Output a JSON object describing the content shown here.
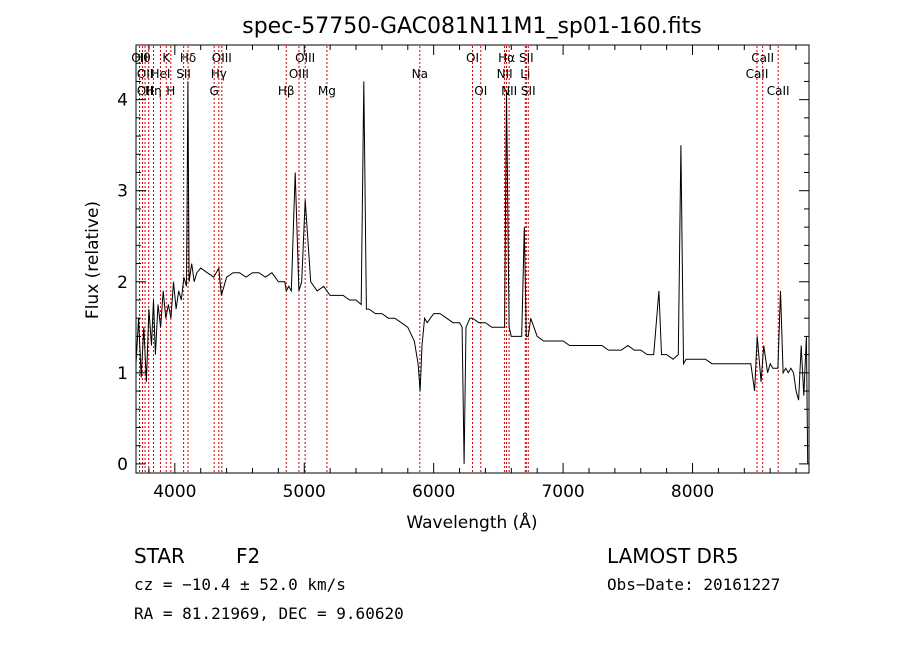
{
  "chart_data": {
    "type": "line",
    "title": "spec-57750-GAC081N11M1_sp01-160.fits",
    "xlabel": "Wavelength (Å)",
    "ylabel": "Flux (relative)",
    "xlim": [
      3700,
      8900
    ],
    "ylim": [
      -0.1,
      4.6
    ],
    "x_ticks": [
      4000,
      5000,
      6000,
      7000,
      8000
    ],
    "x_tick_labels": [
      "4000",
      "5000",
      "6000",
      "7000",
      "8000"
    ],
    "y_ticks": [
      0,
      1,
      2,
      3,
      4
    ],
    "y_tick_labels": [
      "0",
      "1",
      "2",
      "3",
      "4"
    ],
    "grid": false,
    "line_color": "#000000",
    "marker_color": "#cc0000",
    "series": [
      {
        "x": [
          3700,
          3720,
          3740,
          3760,
          3780,
          3800,
          3820,
          3835,
          3850,
          3870,
          3890,
          3910,
          3930,
          3950,
          3970,
          3990,
          4010,
          4030,
          4050,
          4070,
          4090,
          4101,
          4110,
          4130,
          4150,
          4170,
          4200,
          4250,
          4300,
          4340,
          4360,
          4400,
          4450,
          4500,
          4550,
          4600,
          4650,
          4700,
          4750,
          4800,
          4850,
          4861,
          4880,
          4900,
          4930,
          4959,
          4980,
          5007,
          5050,
          5100,
          5150,
          5200,
          5250,
          5300,
          5350,
          5400,
          5440,
          5460,
          5480,
          5500,
          5550,
          5600,
          5650,
          5700,
          5750,
          5800,
          5850,
          5880,
          5895,
          5910,
          5930,
          5950,
          6000,
          6050,
          6100,
          6150,
          6200,
          6220,
          6235,
          6250,
          6280,
          6300,
          6350,
          6400,
          6450,
          6500,
          6530,
          6548,
          6563,
          6583,
          6600,
          6620,
          6650,
          6680,
          6700,
          6716,
          6731,
          6750,
          6800,
          6850,
          6900,
          6950,
          7000,
          7050,
          7100,
          7150,
          7200,
          7250,
          7300,
          7350,
          7400,
          7450,
          7500,
          7550,
          7600,
          7650,
          7700,
          7740,
          7760,
          7800,
          7850,
          7890,
          7910,
          7930,
          7950,
          8000,
          8050,
          8100,
          8150,
          8200,
          8250,
          8300,
          8350,
          8400,
          8450,
          8480,
          8500,
          8530,
          8550,
          8580,
          8600,
          8620,
          8640,
          8660,
          8680,
          8700,
          8720,
          8740,
          8760,
          8780,
          8800,
          8820,
          8840,
          8860,
          8880,
          8890
        ],
        "y": [
          1.1,
          1.6,
          0.95,
          1.5,
          0.9,
          1.7,
          1.3,
          1.8,
          1.2,
          1.75,
          1.5,
          1.9,
          1.6,
          1.75,
          1.6,
          2.0,
          1.7,
          1.9,
          1.8,
          2.05,
          1.95,
          4.2,
          2.0,
          2.2,
          2.0,
          2.1,
          2.15,
          2.1,
          2.05,
          2.15,
          1.85,
          2.05,
          2.1,
          2.1,
          2.05,
          2.1,
          2.1,
          2.05,
          2.1,
          2.0,
          2.0,
          1.9,
          1.95,
          1.9,
          3.2,
          1.9,
          2.0,
          2.9,
          2.0,
          1.9,
          1.95,
          1.85,
          1.85,
          1.85,
          1.8,
          1.8,
          1.75,
          4.2,
          1.7,
          1.7,
          1.65,
          1.65,
          1.6,
          1.6,
          1.55,
          1.5,
          1.35,
          1.1,
          0.8,
          1.3,
          1.6,
          1.55,
          1.65,
          1.65,
          1.6,
          1.55,
          1.55,
          1.5,
          0.0,
          1.5,
          1.6,
          1.6,
          1.55,
          1.55,
          1.5,
          1.5,
          1.5,
          1.5,
          4.1,
          1.5,
          1.4,
          1.4,
          1.4,
          1.4,
          2.6,
          1.4,
          1.4,
          1.6,
          1.4,
          1.35,
          1.35,
          1.35,
          1.35,
          1.3,
          1.3,
          1.3,
          1.3,
          1.3,
          1.3,
          1.25,
          1.25,
          1.25,
          1.3,
          1.25,
          1.25,
          1.2,
          1.2,
          1.9,
          1.2,
          1.2,
          1.15,
          1.2,
          3.5,
          1.1,
          1.15,
          1.15,
          1.15,
          1.15,
          1.1,
          1.1,
          1.1,
          1.1,
          1.1,
          1.1,
          1.1,
          0.8,
          1.4,
          0.9,
          1.3,
          1.0,
          1.1,
          1.05,
          1.05,
          1.05,
          1.9,
          1.0,
          1.05,
          1.0,
          1.05,
          1.0,
          0.8,
          0.7,
          1.3,
          0.75,
          1.4,
          0.0
        ]
      }
    ],
    "line_markers": [
      {
        "w": 3727,
        "top": "OII",
        "mid": "",
        "bot": ""
      },
      {
        "w": 3750,
        "top": "Hθ",
        "mid": "",
        "bot": ""
      },
      {
        "w": 3770,
        "top": "",
        "mid": "OII",
        "bot": "OII"
      },
      {
        "w": 3798,
        "top": "",
        "mid": "",
        "bot": ""
      },
      {
        "w": 3835,
        "top": "",
        "mid": "",
        "bot": "Hη"
      },
      {
        "w": 3889,
        "top": "",
        "mid": "HeI",
        "bot": ""
      },
      {
        "w": 3934,
        "top": "K",
        "mid": "",
        "bot": ""
      },
      {
        "w": 3969,
        "top": "",
        "mid": "",
        "bot": "H"
      },
      {
        "w": 4068,
        "top": "",
        "mid": "SII",
        "bot": ""
      },
      {
        "w": 4102,
        "top": "Hδ",
        "mid": "",
        "bot": ""
      },
      {
        "w": 4304,
        "top": "",
        "mid": "",
        "bot": "G"
      },
      {
        "w": 4340,
        "top": "",
        "mid": "Hγ",
        "bot": ""
      },
      {
        "w": 4363,
        "top": "OIII",
        "mid": "",
        "bot": ""
      },
      {
        "w": 4861,
        "top": "",
        "mid": "",
        "bot": "Hβ"
      },
      {
        "w": 4959,
        "top": "",
        "mid": "OIII",
        "bot": ""
      },
      {
        "w": 5007,
        "top": "OIII",
        "mid": "",
        "bot": ""
      },
      {
        "w": 5175,
        "top": "",
        "mid": "",
        "bot": "Mg"
      },
      {
        "w": 5893,
        "top": "",
        "mid": "Na",
        "bot": ""
      },
      {
        "w": 6300,
        "top": "OI",
        "mid": "",
        "bot": ""
      },
      {
        "w": 6364,
        "top": "",
        "mid": "",
        "bot": "OI"
      },
      {
        "w": 6548,
        "top": "",
        "mid": "NII",
        "bot": ""
      },
      {
        "w": 6563,
        "top": "Hα",
        "mid": "",
        "bot": ""
      },
      {
        "w": 6583,
        "top": "",
        "mid": "",
        "bot": "NII"
      },
      {
        "w": 6708,
        "top": "",
        "mid": "Li",
        "bot": ""
      },
      {
        "w": 6716,
        "top": "SII",
        "mid": "",
        "bot": ""
      },
      {
        "w": 6731,
        "top": "",
        "mid": "",
        "bot": "SII"
      },
      {
        "w": 8498,
        "top": "",
        "mid": "CaII",
        "bot": ""
      },
      {
        "w": 8542,
        "top": "CaII",
        "mid": "",
        "bot": ""
      },
      {
        "w": 8662,
        "top": "",
        "mid": "",
        "bot": "CaII"
      }
    ]
  },
  "info": {
    "class": "STAR",
    "subclass": "F2",
    "survey": "LAMOST DR5",
    "cz": "cz = −10.4 ± 52.0 km/s",
    "obs_date": "Obs−Date: 20161227",
    "radec": "RA =  81.21969, DEC =   9.60620"
  }
}
